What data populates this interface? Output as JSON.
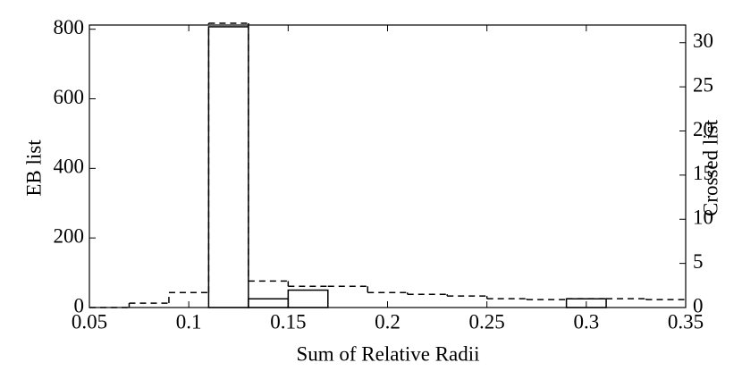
{
  "chart_data": {
    "type": "histogram",
    "xlabel": "Sum of Relative Radii",
    "ylabel": "EB list",
    "y2label": "Crossed list",
    "bins": [
      0.05,
      0.07,
      0.09,
      0.11,
      0.13,
      0.15,
      0.17,
      0.19,
      0.21,
      0.23,
      0.25,
      0.27,
      0.29,
      0.31,
      0.33,
      0.35
    ],
    "series": [
      {
        "name": "EB list",
        "color": "#000000",
        "linestyle": "solid",
        "axis": "y",
        "values": [
          0,
          0,
          0,
          807,
          25,
          50,
          0,
          0,
          0,
          0,
          0,
          0,
          25,
          0,
          0
        ]
      },
      {
        "name": "Crossed list",
        "color": "#000000",
        "linestyle": "dashed",
        "axis": "y2",
        "values": [
          0,
          0.5,
          1.7,
          32.2,
          3,
          2.4,
          2.4,
          1.7,
          1.5,
          1.3,
          1,
          0.9,
          1,
          1,
          0.9
        ]
      }
    ],
    "xlim": [
      0.05,
      0.35
    ],
    "xticks": [
      0.05,
      0.1,
      0.15,
      0.2,
      0.25,
      0.3,
      0.35
    ],
    "ylim": [
      0,
      812
    ],
    "yticks": [
      0,
      200,
      400,
      600,
      800
    ],
    "y2lim": [
      0,
      32
    ],
    "y2ticks": [
      0,
      5,
      10,
      15,
      20,
      25,
      30
    ],
    "grid": false
  }
}
